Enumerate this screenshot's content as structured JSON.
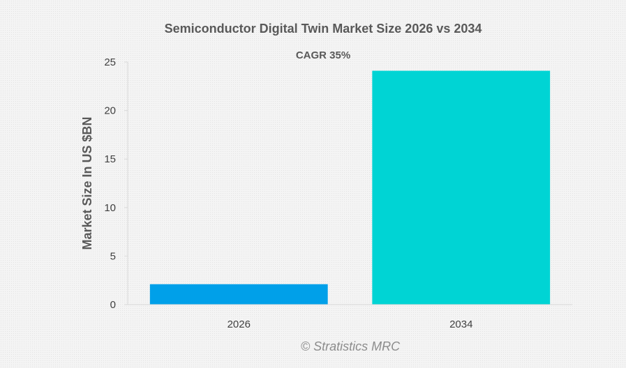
{
  "chart_data": {
    "type": "bar",
    "title": "Semiconductor Digital Twin Market Size 2026 vs 2034",
    "subtitle": "CAGR 35%",
    "xlabel": "",
    "ylabel": "Market Size In US $BN",
    "categories": [
      "2026",
      "2034"
    ],
    "values": [
      2.1,
      24.1
    ],
    "bar_colors": [
      "#00a0e9",
      "#00d4d4"
    ],
    "ylim": [
      0,
      25
    ],
    "yticks": [
      "0",
      "5",
      "10",
      "15",
      "20",
      "25"
    ],
    "grid": false,
    "legend": "none"
  },
  "watermark": "© Stratistics MRC"
}
